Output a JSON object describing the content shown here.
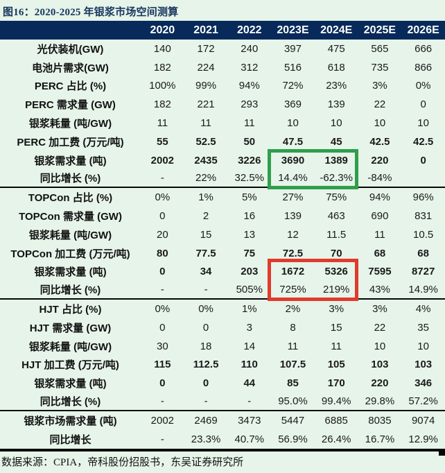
{
  "title": "图16：2020-2025 年银浆市场空间测算",
  "footer": "数据来源：CPIA，帝科股份招股书，东吴证券研究所",
  "colors": {
    "page_background": "#e6f4e9",
    "header_background": "#072a5a",
    "header_text": "#ffffff",
    "title_text": "#17365d",
    "body_text": "#1a1a1a",
    "green_highlight": "#2f9e4c",
    "red_highlight": "#e03a2d",
    "section_divider": "#050505"
  },
  "table": {
    "header": [
      "2020",
      "2021",
      "2022",
      "2023E",
      "2024E",
      "2025E",
      "2026E"
    ],
    "rows": [
      {
        "label": "光伏装机(GW)",
        "values": [
          "140",
          "172",
          "240",
          "397",
          "475",
          "565",
          "666"
        ],
        "bold": false,
        "divider_after": false
      },
      {
        "label": "电池片需求(GW)",
        "values": [
          "182",
          "224",
          "312",
          "516",
          "618",
          "735",
          "866"
        ],
        "bold": false,
        "divider_after": false
      },
      {
        "label": "PERC 占比 (%)",
        "values": [
          "100%",
          "99%",
          "94%",
          "72%",
          "23%",
          "3%",
          "0%"
        ],
        "bold": false,
        "divider_after": false
      },
      {
        "label": "PERC 需求量 (GW)",
        "values": [
          "182",
          "221",
          "293",
          "369",
          "139",
          "22",
          "0"
        ],
        "bold": false,
        "divider_after": false
      },
      {
        "label": "银浆耗量 (吨/GW)",
        "values": [
          "11",
          "11",
          "11",
          "10",
          "10",
          "10",
          "10"
        ],
        "bold": false,
        "divider_after": false
      },
      {
        "label": "PERC 加工费 (万元/吨)",
        "values": [
          "55",
          "52.5",
          "50",
          "47.5",
          "45",
          "42.5",
          "42.5"
        ],
        "bold": true,
        "divider_after": false
      },
      {
        "label": "银浆需求量 (吨)",
        "values": [
          "2002",
          "2435",
          "3226",
          "3690",
          "1389",
          "220",
          "0"
        ],
        "bold": true,
        "divider_after": false
      },
      {
        "label": "同比增长 (%)",
        "values": [
          "-",
          "22%",
          "32.5%",
          "14.4%",
          "-62.3%",
          "-84%",
          ""
        ],
        "bold": false,
        "divider_after": true
      },
      {
        "label": "TOPCon 占比 (%)",
        "values": [
          "0%",
          "1%",
          "5%",
          "27%",
          "75%",
          "94%",
          "96%"
        ],
        "bold": false,
        "divider_after": false
      },
      {
        "label": "TOPCon 需求量 (GW)",
        "values": [
          "0",
          "2",
          "16",
          "139",
          "463",
          "690",
          "831"
        ],
        "bold": false,
        "divider_after": false
      },
      {
        "label": "银浆耗量 (吨/GW)",
        "values": [
          "20",
          "15",
          "13",
          "12",
          "11.5",
          "11",
          "10.5"
        ],
        "bold": false,
        "divider_after": false
      },
      {
        "label": "TOPCon 加工费 (万元/吨)",
        "values": [
          "80",
          "77.5",
          "75",
          "72.5",
          "70",
          "68",
          "68"
        ],
        "bold": true,
        "divider_after": false
      },
      {
        "label": "银浆需求量 (吨)",
        "values": [
          "0",
          "34",
          "203",
          "1672",
          "5326",
          "7595",
          "8727"
        ],
        "bold": true,
        "divider_after": false
      },
      {
        "label": "同比增长 (%)",
        "values": [
          "-",
          "-",
          "505%",
          "725%",
          "219%",
          "43%",
          "14.9%"
        ],
        "bold": false,
        "divider_after": true
      },
      {
        "label": "HJT 占比 (%)",
        "values": [
          "0%",
          "0%",
          "1%",
          "2%",
          "3%",
          "3%",
          "4%"
        ],
        "bold": false,
        "divider_after": false
      },
      {
        "label": "HJT 需求量 (GW)",
        "values": [
          "0",
          "0",
          "3",
          "8",
          "15",
          "22",
          "35"
        ],
        "bold": false,
        "divider_after": false
      },
      {
        "label": "银浆耗量 (吨/GW)",
        "values": [
          "30",
          "18",
          "14",
          "11",
          "11",
          "10",
          "10"
        ],
        "bold": false,
        "divider_after": false
      },
      {
        "label": "HJT 加工费 (万元/吨)",
        "values": [
          "115",
          "112.5",
          "110",
          "107.5",
          "105",
          "103",
          "103"
        ],
        "bold": true,
        "divider_after": false
      },
      {
        "label": "银浆需求量 (吨)",
        "values": [
          "0",
          "0",
          "44",
          "85",
          "170",
          "220",
          "346"
        ],
        "bold": true,
        "divider_after": false
      },
      {
        "label": "同比增长 (%)",
        "values": [
          "-",
          "-",
          "-",
          "95.0%",
          "99.4%",
          "29.8%",
          "57.2%"
        ],
        "bold": false,
        "divider_after": true
      },
      {
        "label": "银浆市场需求量 (吨)",
        "values": [
          "2002",
          "2469",
          "3473",
          "5447",
          "6885",
          "8035",
          "9074"
        ],
        "bold": false,
        "divider_after": false
      },
      {
        "label": "同比增长",
        "values": [
          "-",
          "23.3%",
          "40.7%",
          "56.9%",
          "26.4%",
          "16.7%",
          "12.9%"
        ],
        "bold": false,
        "divider_after": false
      }
    ]
  },
  "highlights": [
    {
      "name": "green-highlight",
      "rows": "PERC 银浆需求量/同比增长",
      "columns": "2023E-2024E",
      "color": "#2f9e4c"
    },
    {
      "name": "red-highlight",
      "rows": "TOPCon 银浆需求量/同比增长",
      "columns": "2023E-2024E",
      "color": "#e03a2d"
    }
  ]
}
